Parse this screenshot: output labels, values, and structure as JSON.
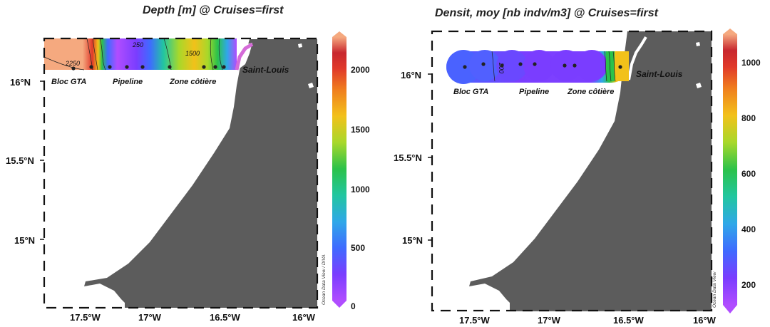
{
  "maps": [
    {
      "title": "Depth [m] @ Cruises=first",
      "lon_ticks": [
        "17.5°W",
        "17°W",
        "16.5°W",
        "16°W"
      ],
      "lat_ticks": [
        "16°N",
        "15.5°N",
        "15°N"
      ],
      "places": [
        "Bloc GTA",
        "Pipeline",
        "Zone côtière"
      ],
      "city": "Saint-Louis",
      "contour_labels": [
        "2250",
        "250",
        "1500"
      ],
      "colorbar_ticks": [
        "2000",
        "1500",
        "1000",
        "500",
        "0"
      ],
      "colorbar_range": [
        0,
        2200
      ],
      "watermark": "Ocean Data View / DIVA",
      "land_color": "#5c5c5c"
    },
    {
      "title": "Densit, moy [nb indv/m3] @ Cruises=first",
      "lon_ticks": [
        "17.5°W",
        "17°W",
        "16.5°W",
        "16°W"
      ],
      "lat_ticks": [
        "16°N",
        "15.5°N",
        "15°N"
      ],
      "places": [
        "Bloc GTA",
        "Pipeline",
        "Zone côtière"
      ],
      "city": "Saint-Louis",
      "contour_labels": [
        "200"
      ],
      "colorbar_ticks": [
        "1000",
        "800",
        "600",
        "400",
        "200"
      ],
      "colorbar_range": [
        100,
        1100
      ],
      "watermark": "Ocean Data View",
      "land_color": "#5c5c5c"
    }
  ],
  "colormap": [
    "#b04dff",
    "#7a3dff",
    "#3f6bff",
    "#2fa8e8",
    "#22c6a0",
    "#2bc24a",
    "#a8d82a",
    "#f2c11a",
    "#f07e1e",
    "#e0392a",
    "#c8272e",
    "#f5a97f"
  ]
}
